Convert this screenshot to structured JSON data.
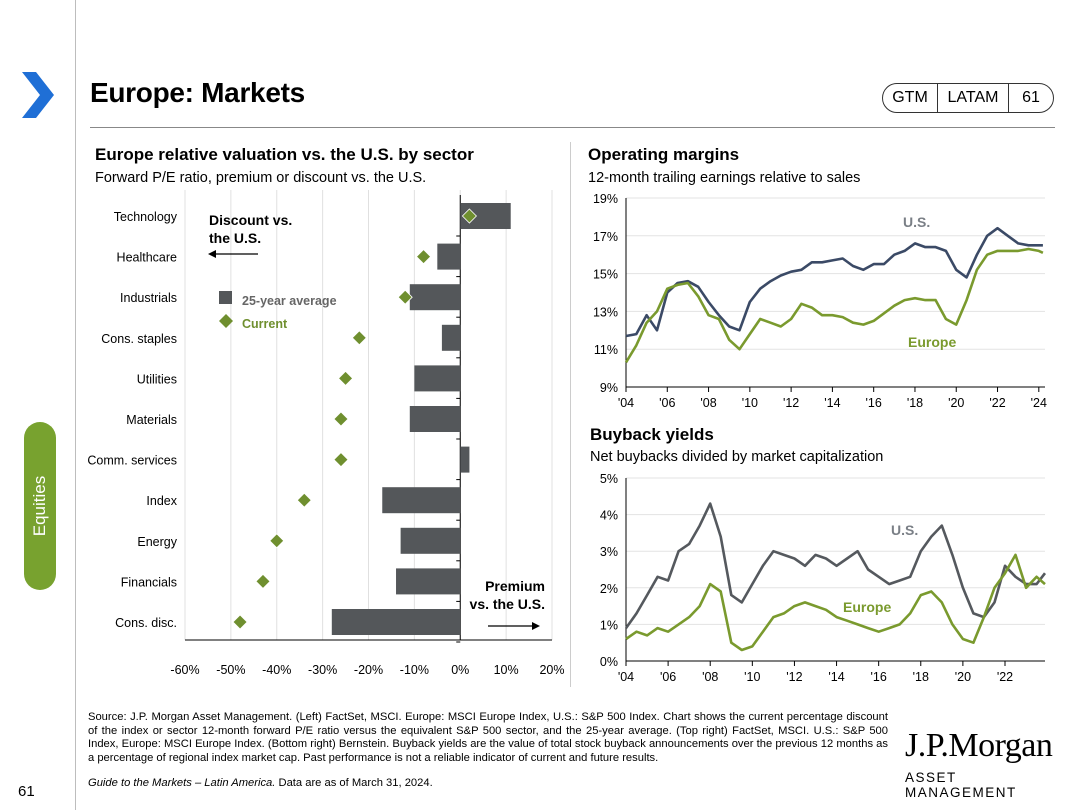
{
  "header": {
    "title": "Europe: Markets",
    "pill": [
      "GTM",
      "LATAM",
      "61"
    ]
  },
  "sidebar": {
    "tab_label": "Equities",
    "page_number": "61"
  },
  "colors": {
    "accent_green": "#78a22f",
    "us_line": "#3b4a66",
    "europe_line": "#7a9a2e",
    "bar_gray": "#54575a",
    "diamond": "#6f8f2f"
  },
  "left_chart": {
    "title": "Europe relative valuation vs. the U.S. by sector",
    "subtitle": "Forward P/E ratio, premium or discount vs. the U.S.",
    "discount_label_1": "Discount vs.",
    "discount_label_2": "the U.S.",
    "premium_label_1": "Premium",
    "premium_label_2": "vs. the U.S.",
    "legend_avg": "25-year average",
    "legend_current": "Current"
  },
  "right_top": {
    "title": "Operating margins",
    "subtitle": "12-month trailing earnings relative to sales",
    "us_label": "U.S.",
    "europe_label": "Europe"
  },
  "right_bottom": {
    "title": "Buyback yields",
    "subtitle": "Net buybacks divided by market capitalization",
    "us_label": "U.S.",
    "europe_label": "Europe"
  },
  "chart_data": [
    {
      "type": "bar",
      "title": "Europe relative valuation vs. the U.S. by sector",
      "orientation": "horizontal",
      "categories": [
        "Technology",
        "Healthcare",
        "Industrials",
        "Cons. staples",
        "Utilities",
        "Materials",
        "Comm. services",
        "Index",
        "Energy",
        "Financials",
        "Cons. disc."
      ],
      "series": [
        {
          "name": "25-year average",
          "values": [
            11,
            -5,
            -11,
            -4,
            -10,
            -11,
            2,
            -17,
            -13,
            -14,
            -28
          ]
        },
        {
          "name": "Current",
          "values": [
            2,
            -8,
            -12,
            -22,
            -25,
            -26,
            -26,
            -34,
            -40,
            -43,
            -48
          ]
        }
      ],
      "xlim": [
        -60,
        20
      ],
      "xticks": [
        "-60%",
        "-50%",
        "-40%",
        "-30%",
        "-20%",
        "-10%",
        "0%",
        "10%",
        "20%"
      ]
    },
    {
      "type": "line",
      "title": "Operating margins",
      "x_range": [
        2004,
        2024.3
      ],
      "xticks": [
        "'04",
        "'06",
        "'08",
        "'10",
        "'12",
        "'14",
        "'16",
        "'18",
        "'20",
        "'22",
        "'24"
      ],
      "yticks": [
        "9%",
        "11%",
        "13%",
        "15%",
        "17%",
        "19%"
      ],
      "ylim": [
        9,
        19
      ],
      "series": [
        {
          "name": "U.S.",
          "x": [
            2004,
            2004.5,
            2005,
            2005.5,
            2006,
            2006.5,
            2007,
            2007.5,
            2008,
            2008.5,
            2009,
            2009.5,
            2010,
            2010.5,
            2011,
            2011.5,
            2012,
            2012.5,
            2013,
            2013.5,
            2014,
            2014.5,
            2015,
            2015.5,
            2016,
            2016.5,
            2017,
            2017.5,
            2018,
            2018.5,
            2019,
            2019.5,
            2020,
            2020.5,
            2021,
            2021.5,
            2022,
            2022.5,
            2023,
            2023.5,
            2024,
            2024.2
          ],
          "values": [
            11.7,
            11.8,
            12.8,
            12.0,
            14.0,
            14.5,
            14.6,
            14.3,
            13.5,
            12.8,
            12.2,
            12.0,
            13.5,
            14.2,
            14.6,
            14.9,
            15.1,
            15.2,
            15.6,
            15.6,
            15.7,
            15.8,
            15.4,
            15.2,
            15.5,
            15.5,
            16.0,
            16.2,
            16.6,
            16.4,
            16.4,
            16.2,
            15.2,
            14.8,
            16.0,
            17.0,
            17.4,
            17.0,
            16.6,
            16.5,
            16.5,
            16.5
          ]
        },
        {
          "name": "Europe",
          "x": [
            2004,
            2004.5,
            2005,
            2005.5,
            2006,
            2006.5,
            2007,
            2007.5,
            2008,
            2008.5,
            2009,
            2009.5,
            2010,
            2010.5,
            2011,
            2011.5,
            2012,
            2012.5,
            2013,
            2013.5,
            2014,
            2014.5,
            2015,
            2015.5,
            2016,
            2016.5,
            2017,
            2017.5,
            2018,
            2018.5,
            2019,
            2019.5,
            2020,
            2020.5,
            2021,
            2021.5,
            2022,
            2022.5,
            2023,
            2023.5,
            2024,
            2024.2
          ],
          "values": [
            10.3,
            11.2,
            12.4,
            13.0,
            14.2,
            14.4,
            14.5,
            13.8,
            12.8,
            12.6,
            11.5,
            11.0,
            11.8,
            12.6,
            12.4,
            12.2,
            12.6,
            13.4,
            13.2,
            12.8,
            12.8,
            12.7,
            12.4,
            12.3,
            12.5,
            12.9,
            13.3,
            13.6,
            13.7,
            13.6,
            13.6,
            12.6,
            12.3,
            13.6,
            15.2,
            16.0,
            16.2,
            16.2,
            16.2,
            16.3,
            16.2,
            16.1
          ]
        }
      ]
    },
    {
      "type": "line",
      "title": "Buyback yields",
      "x_range": [
        2004,
        2023.9
      ],
      "xticks": [
        "'04",
        "'06",
        "'08",
        "'10",
        "'12",
        "'14",
        "'16",
        "'18",
        "'20",
        "'22"
      ],
      "yticks": [
        "0%",
        "1%",
        "2%",
        "3%",
        "4%",
        "5%"
      ],
      "ylim": [
        0,
        5
      ],
      "series": [
        {
          "name": "U.S.",
          "x": [
            2004,
            2004.5,
            2005,
            2005.5,
            2006,
            2006.5,
            2007,
            2007.5,
            2008,
            2008.5,
            2009,
            2009.5,
            2010,
            2010.5,
            2011,
            2011.5,
            2012,
            2012.5,
            2013,
            2013.5,
            2014,
            2014.5,
            2015,
            2015.5,
            2016,
            2016.5,
            2017,
            2017.5,
            2018,
            2018.5,
            2019,
            2019.5,
            2020,
            2020.5,
            2021,
            2021.5,
            2022,
            2022.5,
            2023,
            2023.5,
            2023.9
          ],
          "values": [
            0.9,
            1.3,
            1.8,
            2.3,
            2.2,
            3.0,
            3.2,
            3.7,
            4.3,
            3.4,
            1.8,
            1.6,
            2.1,
            2.6,
            3.0,
            2.9,
            2.8,
            2.6,
            2.9,
            2.8,
            2.6,
            2.8,
            3.0,
            2.5,
            2.3,
            2.1,
            2.2,
            2.3,
            3.0,
            3.4,
            3.7,
            2.9,
            2.0,
            1.3,
            1.2,
            1.6,
            2.6,
            2.3,
            2.1,
            2.1,
            2.4
          ]
        },
        {
          "name": "Europe",
          "x": [
            2004,
            2004.5,
            2005,
            2005.5,
            2006,
            2006.5,
            2007,
            2007.5,
            2008,
            2008.5,
            2009,
            2009.5,
            2010,
            2010.5,
            2011,
            2011.5,
            2012,
            2012.5,
            2013,
            2013.5,
            2014,
            2014.5,
            2015,
            2015.5,
            2016,
            2016.5,
            2017,
            2017.5,
            2018,
            2018.5,
            2019,
            2019.5,
            2020,
            2020.5,
            2021,
            2021.5,
            2022,
            2022.5,
            2023,
            2023.5,
            2023.9
          ],
          "values": [
            0.6,
            0.8,
            0.7,
            0.9,
            0.8,
            1.0,
            1.2,
            1.5,
            2.1,
            1.9,
            0.5,
            0.3,
            0.4,
            0.8,
            1.2,
            1.3,
            1.5,
            1.6,
            1.5,
            1.4,
            1.2,
            1.1,
            1.0,
            0.9,
            0.8,
            0.9,
            1.0,
            1.3,
            1.8,
            1.9,
            1.6,
            1.0,
            0.6,
            0.5,
            1.2,
            2.0,
            2.4,
            2.9,
            2.0,
            2.3,
            2.1
          ]
        }
      ]
    }
  ],
  "footer": {
    "source": "Source: J.P. Morgan Asset Management. (Left) FactSet, MSCI. Europe: MSCI Europe Index, U.S.: S&P 500 Index. Chart shows the current percentage discount of the index or sector 12-month forward P/E ratio versus the equivalent S&P 500 sector, and the 25-year average. (Top right) FactSet, MSCI. U.S.: S&P 500 Index, Europe: MSCI Europe Index. (Bottom right) Bernstein. Buyback yields are the value of total stock buyback announcements over the previous 12 months as a percentage of regional index market cap. Past performance is not a reliable indicator of current and future results.",
    "guide_italic": "Guide to the Markets – Latin America.",
    "guide_rest": " Data are as of March 31, 2024."
  },
  "logo": {
    "name": "J.P.Morgan",
    "tagline": "ASSET MANAGEMENT"
  }
}
